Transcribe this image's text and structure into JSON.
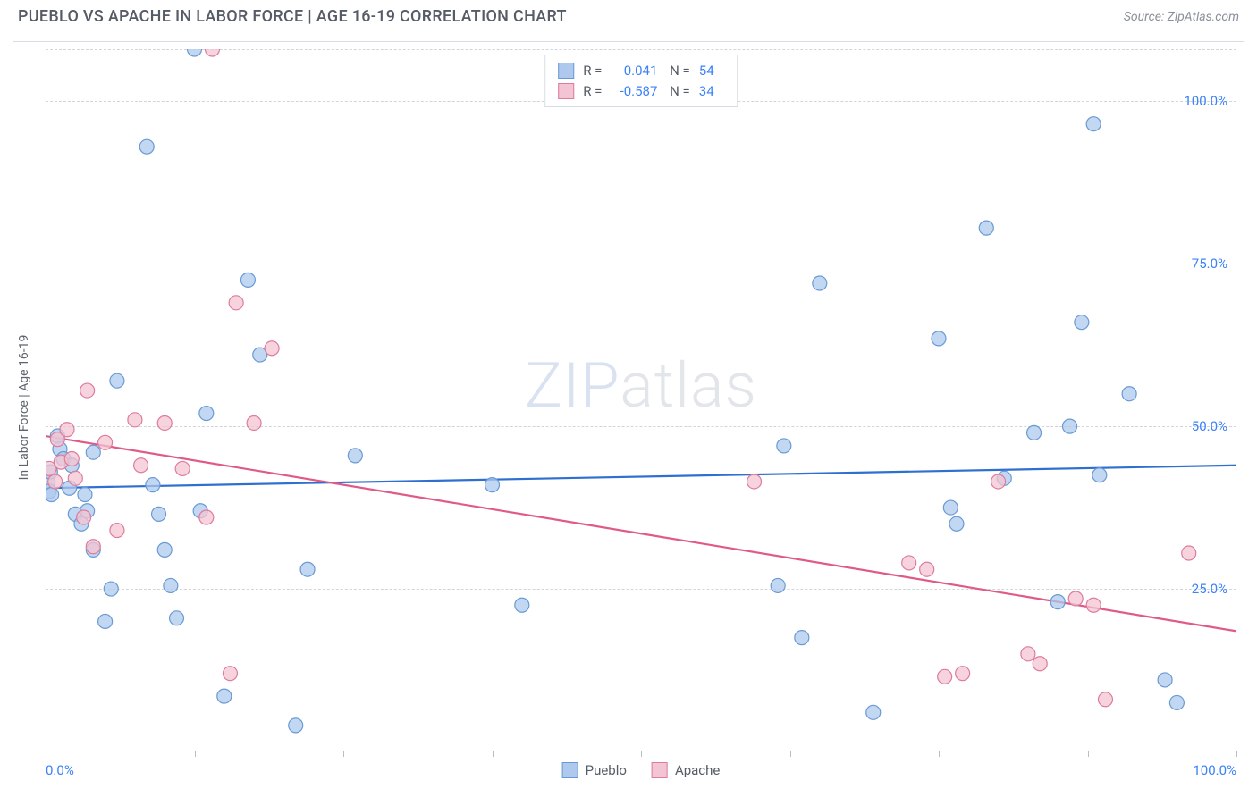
{
  "title": "PUEBLO VS APACHE IN LABOR FORCE | AGE 16-19 CORRELATION CHART",
  "source": "Source: ZipAtlas.com",
  "y_axis_title": "In Labor Force | Age 16-19",
  "watermark_zip": "ZIP",
  "watermark_rest": "atlas",
  "chart": {
    "type": "scatter",
    "xlim": [
      0,
      100
    ],
    "ylim": [
      0,
      108
    ],
    "x_tick_positions": [
      0,
      12.5,
      25,
      37.5,
      50,
      62.5,
      75,
      87.5,
      100
    ],
    "x_left_label": "0.0%",
    "x_right_label": "100.0%",
    "y_gridlines": [
      25,
      50,
      75,
      100,
      108
    ],
    "y_tick_labels": {
      "25": "25.0%",
      "50": "50.0%",
      "75": "75.0%",
      "100": "100.0%"
    },
    "background_color": "#ffffff",
    "grid_color": "#d0d5dc",
    "marker_radius": 8,
    "marker_stroke_width": 1.2,
    "line_width": 2.2,
    "series": [
      {
        "name": "Pueblo",
        "fill_color": "#aec9ed",
        "stroke_color": "#6a9ad4",
        "line_color": "#2f6fd0",
        "R": "0.041",
        "N": "54",
        "trend": {
          "x1": 0,
          "y1": 40.5,
          "x2": 100,
          "y2": 44.0
        },
        "points": [
          [
            0.2,
            41.5
          ],
          [
            0.3,
            40.0
          ],
          [
            0.4,
            43.0
          ],
          [
            0.5,
            39.5
          ],
          [
            1.0,
            48.5
          ],
          [
            1.2,
            46.5
          ],
          [
            1.5,
            45.0
          ],
          [
            2.0,
            40.5
          ],
          [
            2.2,
            44.0
          ],
          [
            2.5,
            36.5
          ],
          [
            3.0,
            35.0
          ],
          [
            3.3,
            39.5
          ],
          [
            3.5,
            37.0
          ],
          [
            4.0,
            31.0
          ],
          [
            4.0,
            46.0
          ],
          [
            5.0,
            20.0
          ],
          [
            5.5,
            25.0
          ],
          [
            6.0,
            57.0
          ],
          [
            8.5,
            93.0
          ],
          [
            9.0,
            41.0
          ],
          [
            9.5,
            36.5
          ],
          [
            10.0,
            31.0
          ],
          [
            10.5,
            25.5
          ],
          [
            11.0,
            20.5
          ],
          [
            12.5,
            108.0
          ],
          [
            13.0,
            37.0
          ],
          [
            13.5,
            52.0
          ],
          [
            15.0,
            8.5
          ],
          [
            17.0,
            72.5
          ],
          [
            18.0,
            61.0
          ],
          [
            21.0,
            4.0
          ],
          [
            22.0,
            28.0
          ],
          [
            26.0,
            45.5
          ],
          [
            37.5,
            41.0
          ],
          [
            40.0,
            22.5
          ],
          [
            61.5,
            25.5
          ],
          [
            62.0,
            47.0
          ],
          [
            63.5,
            17.5
          ],
          [
            65.0,
            72.0
          ],
          [
            69.5,
            6.0
          ],
          [
            75.0,
            63.5
          ],
          [
            76.0,
            37.5
          ],
          [
            76.5,
            35.0
          ],
          [
            79.0,
            80.5
          ],
          [
            80.5,
            42.0
          ],
          [
            83.0,
            49.0
          ],
          [
            85.0,
            23.0
          ],
          [
            86.0,
            50.0
          ],
          [
            87.0,
            66.0
          ],
          [
            88.0,
            96.5
          ],
          [
            88.5,
            42.5
          ],
          [
            91.0,
            55.0
          ],
          [
            94.0,
            11.0
          ],
          [
            95.0,
            7.5
          ]
        ]
      },
      {
        "name": "Apache",
        "fill_color": "#f3c4d2",
        "stroke_color": "#dd7c9c",
        "line_color": "#e05a87",
        "R": "-0.587",
        "N": "34",
        "trend": {
          "x1": 0,
          "y1": 48.5,
          "x2": 100,
          "y2": 18.5
        },
        "points": [
          [
            0.3,
            43.5
          ],
          [
            0.8,
            41.5
          ],
          [
            1.0,
            48.0
          ],
          [
            1.3,
            44.5
          ],
          [
            1.8,
            49.5
          ],
          [
            2.2,
            45.0
          ],
          [
            2.5,
            42.0
          ],
          [
            3.2,
            36.0
          ],
          [
            3.5,
            55.5
          ],
          [
            4.0,
            31.5
          ],
          [
            5.0,
            47.5
          ],
          [
            6.0,
            34.0
          ],
          [
            7.5,
            51.0
          ],
          [
            8.0,
            44.0
          ],
          [
            10.0,
            50.5
          ],
          [
            11.5,
            43.5
          ],
          [
            13.5,
            36.0
          ],
          [
            14.0,
            108.0
          ],
          [
            15.5,
            12.0
          ],
          [
            16.0,
            69.0
          ],
          [
            17.5,
            50.5
          ],
          [
            19.0,
            62.0
          ],
          [
            59.5,
            41.5
          ],
          [
            72.5,
            29.0
          ],
          [
            74.0,
            28.0
          ],
          [
            75.5,
            11.5
          ],
          [
            77.0,
            12.0
          ],
          [
            80.0,
            41.5
          ],
          [
            82.5,
            15.0
          ],
          [
            83.5,
            13.5
          ],
          [
            86.5,
            23.5
          ],
          [
            88.0,
            22.5
          ],
          [
            89.0,
            8.0
          ],
          [
            96.0,
            30.5
          ]
        ]
      }
    ]
  },
  "legend_bottom": [
    {
      "label": "Pueblo",
      "fill": "#aec9ed",
      "stroke": "#6a9ad4"
    },
    {
      "label": "Apache",
      "fill": "#f3c4d2",
      "stroke": "#dd7c9c"
    }
  ]
}
